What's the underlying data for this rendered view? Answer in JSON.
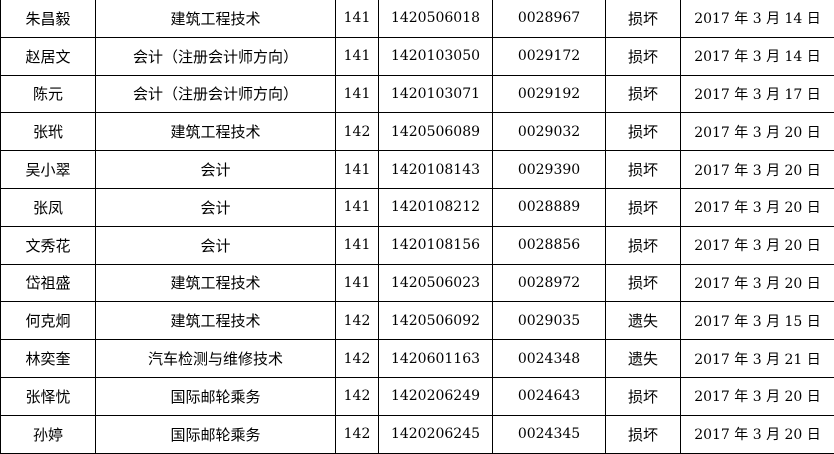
{
  "rows": [
    [
      "朱昌毅",
      "建筑工程技术",
      "141",
      "1420506018",
      "0028967",
      "损坏",
      "2017 年 3 月 14 日"
    ],
    [
      "赵居文",
      "会计（注册会计师方向）",
      "141",
      "1420103050",
      "0029172",
      "损坏",
      "2017 年 3 月 14 日"
    ],
    [
      "陈元",
      "会计（注册会计师方向）",
      "141",
      "1420103071",
      "0029192",
      "损坏",
      "2017 年 3 月 17 日"
    ],
    [
      "张玳",
      "建筑工程技术",
      "142",
      "1420506089",
      "0029032",
      "损坏",
      "2017 年 3 月 20 日"
    ],
    [
      "吴小翠",
      "会计",
      "141",
      "1420108143",
      "0029390",
      "损坏",
      "2017 年 3 月 20 日"
    ],
    [
      "张凤",
      "会计",
      "141",
      "1420108212",
      "0028889",
      "损坏",
      "2017 年 3 月 20 日"
    ],
    [
      "文秀花",
      "会计",
      "141",
      "1420108156",
      "0028856",
      "损坏",
      "2017 年 3 月 20 日"
    ],
    [
      "岱祖盛",
      "建筑工程技术",
      "141",
      "1420506023",
      "0028972",
      "损坏",
      "2017 年 3 月 20 日"
    ],
    [
      "何克炯",
      "建筑工程技术",
      "142",
      "1420506092",
      "0029035",
      "遗失",
      "2017 年 3 月 15 日"
    ],
    [
      "林奕奎",
      "汽车检测与维修技术",
      "142",
      "1420601163",
      "0024348",
      "遗失",
      "2017 年 3 月 21 日"
    ],
    [
      "张怿忧",
      "国际邮轮乘务",
      "142",
      "1420206249",
      "0024643",
      "损坏",
      "2017 年 3 月 20 日"
    ],
    [
      "孙婷",
      "国际邮轮乘务",
      "142",
      "1420206245",
      "0024345",
      "损坏",
      "2017 年 3 月 20 日"
    ]
  ]
}
